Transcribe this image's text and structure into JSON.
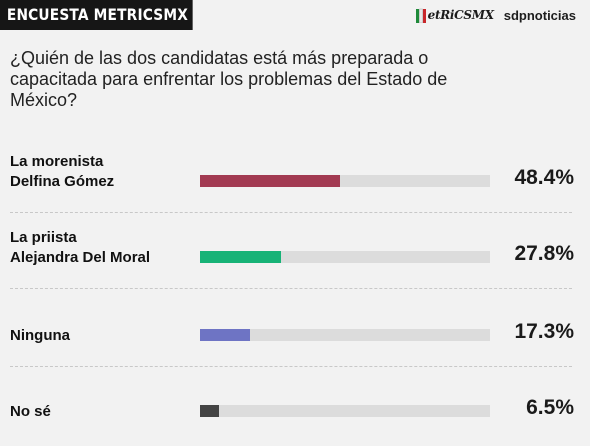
{
  "header": {
    "badge": "ENCUESTA METRICSMX",
    "logo_metrics": "etRiCSMX",
    "logo_sdp": "sdpnoticias"
  },
  "question": "¿Quién de las dos candidatas está más preparada o capacitada para enfrentar los problemas del Estado de México?",
  "chart_data": {
    "type": "bar",
    "orientation": "horizontal",
    "title": "¿Quién de las dos candidatas está más preparada o capacitada para enfrentar los problemas del Estado de México?",
    "categories": [
      [
        "La morenista",
        "Delfina Gómez"
      ],
      [
        "La priista",
        "Alejandra Del Moral"
      ],
      [
        "Ninguna"
      ],
      [
        "No sé"
      ]
    ],
    "values": [
      48.4,
      27.8,
      17.3,
      6.5
    ],
    "value_labels": [
      "48.4%",
      "27.8%",
      "17.3%",
      "6.5%"
    ],
    "colors": [
      "#a23a52",
      "#17b377",
      "#6e74c4",
      "#444444"
    ],
    "xlim": [
      0,
      100
    ],
    "grid": false,
    "legend": "none"
  }
}
